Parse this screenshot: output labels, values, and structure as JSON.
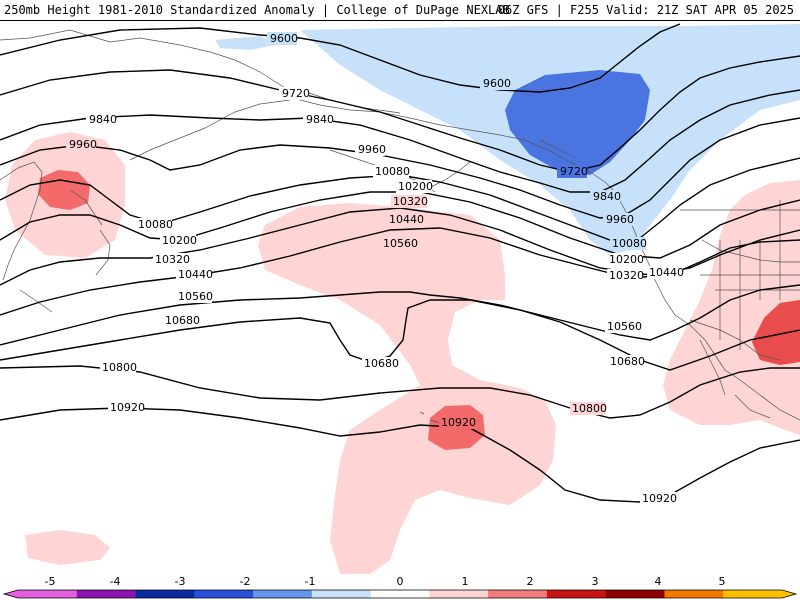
{
  "header": {
    "left": "250mb Height 1981-2010 Standardized Anomaly | College of DuPage NEXLAB",
    "right": "06Z GFS | F255 Valid: 21Z SAT APR 05 2025"
  },
  "colors": {
    "anomaly_neg1_0": "#c8e1fa",
    "anomaly_neg2_neg1": "#4a74e0",
    "anomaly_0_1": "#fed4d4",
    "anomaly_1_2": "#f36a6a",
    "anomaly_2_3": "#e84c4c",
    "contour": "#000000",
    "coastline": "#555555"
  },
  "contour_labels": [
    "9600",
    "9720",
    "9840",
    "9960",
    "10080",
    "10200",
    "10320",
    "10440",
    "10560",
    "10680",
    "10800",
    "10920"
  ],
  "colorbar": {
    "ticks": [
      "-5",
      "-4",
      "-3",
      "-2",
      "-1",
      "0",
      "1",
      "2",
      "3",
      "4",
      "5"
    ],
    "segment_colors": [
      "#e060e0",
      "#8c14b4",
      "#0a28a0",
      "#2850d8",
      "#6496ec",
      "#c8e1fa",
      "#ffffff",
      "#fed4d4",
      "#f37a7a",
      "#c81414",
      "#8c0000",
      "#f07800",
      "#ffc000"
    ]
  }
}
